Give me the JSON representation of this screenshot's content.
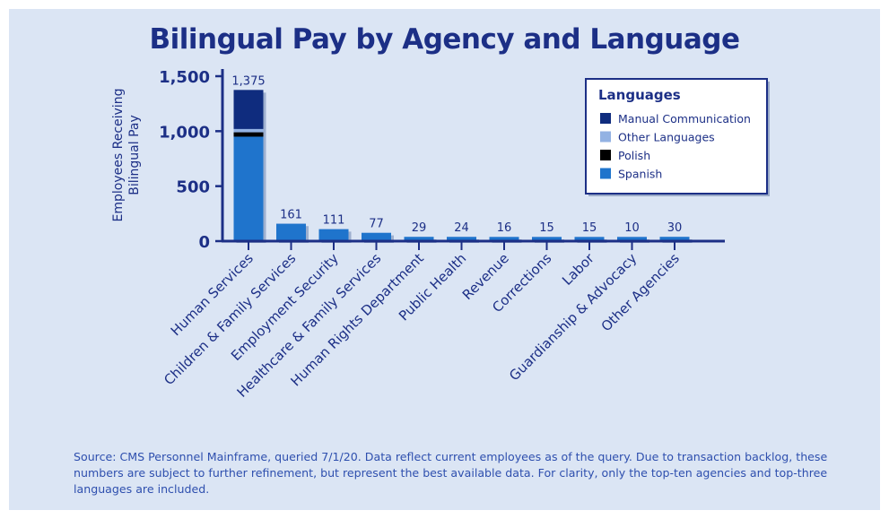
{
  "title": "Bilingual Pay by Agency and Language",
  "source_note": "Source: CMS Personnel Mainframe, queried 7/1/20. Data reflect current employees as of the query. Due to transaction backlog, these numbers are subject to further refinement, but represent the best available data. For clarity, only the top-ten agencies and top-three languages are included.",
  "colors": {
    "background": "#dbe5f4",
    "axis": "#1c2f86",
    "manual_communication": "#0f2c7e",
    "other_languages": "#93b2e3",
    "polish": "#000000",
    "spanish": "#1f74cc",
    "bar_shadow": "#8fa3c6",
    "text_blue": "#1c2f86"
  },
  "chart_data": {
    "type": "bar",
    "stacked": true,
    "title": "Bilingual Pay by Agency and Language",
    "ylabel": "Employees Receiving Bilingual Pay",
    "ylabel_lines": [
      "Employees Receiving",
      "Bilingual Pay"
    ],
    "xlabel": "",
    "ylim": [
      0,
      1500
    ],
    "yticks": [
      0,
      500,
      1000,
      1500
    ],
    "ytick_labels": [
      "0",
      "500",
      "1,000",
      "1,500"
    ],
    "legend_title": "Languages",
    "legend_position": "top-right",
    "categories": [
      "Human Services",
      "Children & Family Services",
      "Employment Security",
      "Healthcare & Family Services",
      "Human Rights Department",
      "Public Health",
      "Revenue",
      "Corrections",
      "Labor",
      "Guardianship & Advocacy",
      "Other Agencies"
    ],
    "totals": [
      1375,
      161,
      111,
      77,
      29,
      24,
      16,
      15,
      15,
      10,
      30
    ],
    "total_labels": [
      "1,375",
      "161",
      "111",
      "77",
      "29",
      "24",
      "16",
      "15",
      "15",
      "10",
      "30"
    ],
    "series": [
      {
        "name": "Spanish",
        "color_key": "spanish",
        "values": [
          950,
          158,
          109,
          76,
          28,
          23,
          15,
          14,
          14,
          9,
          29
        ]
      },
      {
        "name": "Polish",
        "color_key": "polish",
        "values": [
          40,
          0,
          0,
          0,
          0,
          0,
          0,
          0,
          0,
          0,
          0
        ]
      },
      {
        "name": "Other Languages",
        "color_key": "other_languages",
        "values": [
          30,
          3,
          2,
          1,
          1,
          1,
          1,
          1,
          1,
          1,
          1
        ]
      },
      {
        "name": "Manual Communication",
        "color_key": "manual_communication",
        "values": [
          355,
          0,
          0,
          0,
          0,
          0,
          0,
          0,
          0,
          0,
          0
        ]
      }
    ],
    "legend_entries": [
      "Manual Communication",
      "Other Languages",
      "Polish",
      "Spanish"
    ]
  }
}
